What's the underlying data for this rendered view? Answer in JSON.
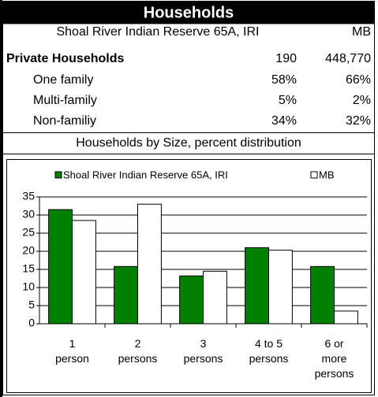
{
  "header": {
    "title": "Households"
  },
  "table": {
    "columns": [
      "Shoal River Indian Reserve 65A, IRI",
      "MB"
    ],
    "rows": [
      [
        "Private Households",
        "190",
        "448,770"
      ],
      [
        "One family",
        "58%",
        "66%"
      ],
      [
        "Multi-family",
        "5%",
        "2%"
      ],
      [
        "Non-familiy",
        "34%",
        "32%"
      ]
    ]
  },
  "chart_data": {
    "type": "bar",
    "title": "Households by Size, percent distribution",
    "categories": [
      "1\nperson",
      "2\npersons",
      "3\npersons",
      "4 to 5\npersons",
      "6 or\nmore\npersons"
    ],
    "series": [
      {
        "name": "Shoal River Indian Reserve 65A, IRI",
        "color": "#008000",
        "values": [
          31.5,
          15.8,
          13.2,
          21,
          15.8
        ]
      },
      {
        "name": "MB",
        "color": "#ffffff",
        "values": [
          28.5,
          33,
          14.5,
          20.3,
          3.5
        ]
      }
    ],
    "ylim": [
      0,
      35
    ],
    "yticks": [
      0,
      5,
      10,
      15,
      20,
      25,
      30,
      35
    ],
    "grid": true
  }
}
